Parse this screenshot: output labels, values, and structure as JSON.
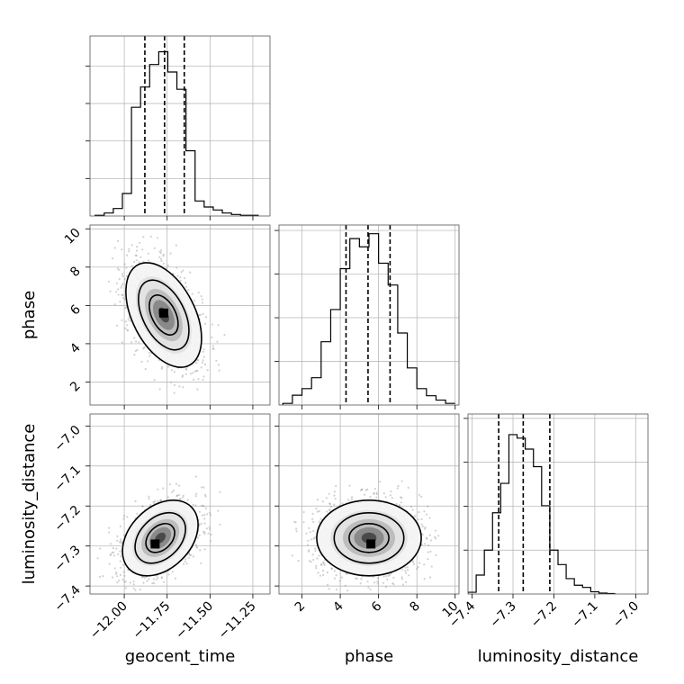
{
  "figure": {
    "type": "corner-plot",
    "parameters": [
      "geocent_time",
      "phase",
      "luminosity_distance"
    ],
    "grid": true,
    "line_color": "#000000",
    "scatter_color": "#9a9a9a",
    "grid_color": "#b0b0b0"
  },
  "chart_data": [
    {
      "type": "histogram",
      "panel": "geocent_time",
      "xlabel": "geocent_time",
      "xlim": [
        -12.2,
        -11.15
      ],
      "ylim": [
        0,
        24
      ],
      "bin_edges": [
        -12.17,
        -12.117,
        -12.064,
        -12.011,
        -11.958,
        -11.905,
        -11.852,
        -11.799,
        -11.746,
        -11.693,
        -11.64,
        -11.587,
        -11.534,
        -11.481,
        -11.428,
        -11.375,
        -11.322,
        -11.269,
        -11.216
      ],
      "values": [
        0.1,
        0.4,
        1.0,
        3.0,
        14.5,
        17.2,
        20.2,
        21.9,
        19.2,
        16.9,
        8.7,
        2.0,
        1.2,
        0.8,
        0.4,
        0.2,
        0.1,
        0.1
      ],
      "quantile_lines": [
        -11.88,
        -11.765,
        -11.65
      ]
    },
    {
      "type": "histogram",
      "panel": "phase",
      "xlabel": "phase",
      "xlim": [
        0.8,
        10.2
      ],
      "ylim": [
        0,
        33
      ],
      "bin_edges": [
        1.0,
        1.5,
        2.0,
        2.5,
        3.0,
        3.5,
        4.0,
        4.5,
        5.0,
        5.5,
        6.0,
        6.5,
        7.0,
        7.5,
        8.0,
        8.5,
        9.0,
        9.5,
        10.0
      ],
      "values": [
        0.3,
        1.8,
        3.0,
        5.0,
        11.6,
        17.5,
        25.0,
        30.5,
        29.0,
        31.4,
        26.0,
        22.0,
        13.2,
        6.8,
        3.0,
        1.7,
        0.9,
        0.3
      ],
      "quantile_lines": [
        4.3,
        5.45,
        6.6
      ]
    },
    {
      "type": "histogram",
      "panel": "luminosity_distance",
      "xlabel": "luminosity_distance",
      "xlim": [
        -7.41,
        -6.97
      ],
      "ylim": [
        0,
        41
      ],
      "bin_edges": [
        -7.41,
        -7.39,
        -7.37,
        -7.35,
        -7.33,
        -7.31,
        -7.29,
        -7.27,
        -7.25,
        -7.23,
        -7.21,
        -7.19,
        -7.17,
        -7.15,
        -7.13,
        -7.11,
        -7.09,
        -7.07,
        -7.05
      ],
      "values": [
        0.4,
        4.3,
        10.0,
        18.5,
        25.2,
        36.3,
        35.5,
        33.0,
        29.0,
        20.1,
        10.0,
        6.7,
        3.5,
        2.0,
        1.5,
        0.5,
        0.2,
        0.1
      ],
      "quantile_lines": [
        -7.335,
        -7.275,
        -7.21
      ]
    },
    {
      "type": "2d-density",
      "panel": "phase vs geocent_time",
      "x_param": "geocent_time",
      "y_param": "phase",
      "xlim": [
        -12.2,
        -11.15
      ],
      "ylim": [
        0.8,
        10.2
      ],
      "mean": [
        -11.77,
        5.5
      ],
      "std": [
        0.105,
        1.3
      ],
      "correlation": -0.45,
      "peak": [
        -11.77,
        5.6
      ]
    },
    {
      "type": "2d-density",
      "panel": "luminosity_distance vs geocent_time",
      "x_param": "geocent_time",
      "y_param": "luminosity_distance",
      "xlim": [
        -12.2,
        -11.15
      ],
      "ylim": [
        -7.42,
        -6.97
      ],
      "mean": [
        -11.79,
        -7.28
      ],
      "std": [
        0.105,
        0.045
      ],
      "correlation": 0.35,
      "peak": [
        -11.82,
        -7.295
      ]
    },
    {
      "type": "2d-density",
      "panel": "luminosity_distance vs phase",
      "x_param": "phase",
      "y_param": "luminosity_distance",
      "xlim": [
        0.8,
        10.2
      ],
      "ylim": [
        -7.42,
        -6.97
      ],
      "mean": [
        5.5,
        -7.28
      ],
      "std": [
        1.3,
        0.045
      ],
      "correlation": 0.0,
      "peak": [
        5.6,
        -7.295
      ]
    }
  ],
  "axes": {
    "geocent_time": {
      "label": "geocent_time",
      "ticks": [
        -12.0,
        -11.75,
        -11.5,
        -11.25
      ],
      "tick_labels": [
        "−12.00",
        "−11.75",
        "−11.50",
        "−11.25"
      ]
    },
    "phase": {
      "label": "phase",
      "ticks": [
        2,
        4,
        6,
        8,
        10
      ],
      "tick_labels": [
        "2",
        "4",
        "6",
        "8",
        "10"
      ]
    },
    "luminosity_distance": {
      "label": "luminosity_distance",
      "ticks": [
        -7.4,
        -7.3,
        -7.2,
        -7.1,
        -7.0
      ],
      "tick_labels": [
        "−7.4",
        "−7.3",
        "−7.2",
        "−7.1",
        "−7.0"
      ]
    }
  },
  "layout": {
    "histogram_gridlines": [
      [
        5,
        10,
        15,
        20
      ],
      [
        8,
        16,
        24,
        32
      ],
      [
        10,
        20,
        30,
        40
      ]
    ]
  }
}
